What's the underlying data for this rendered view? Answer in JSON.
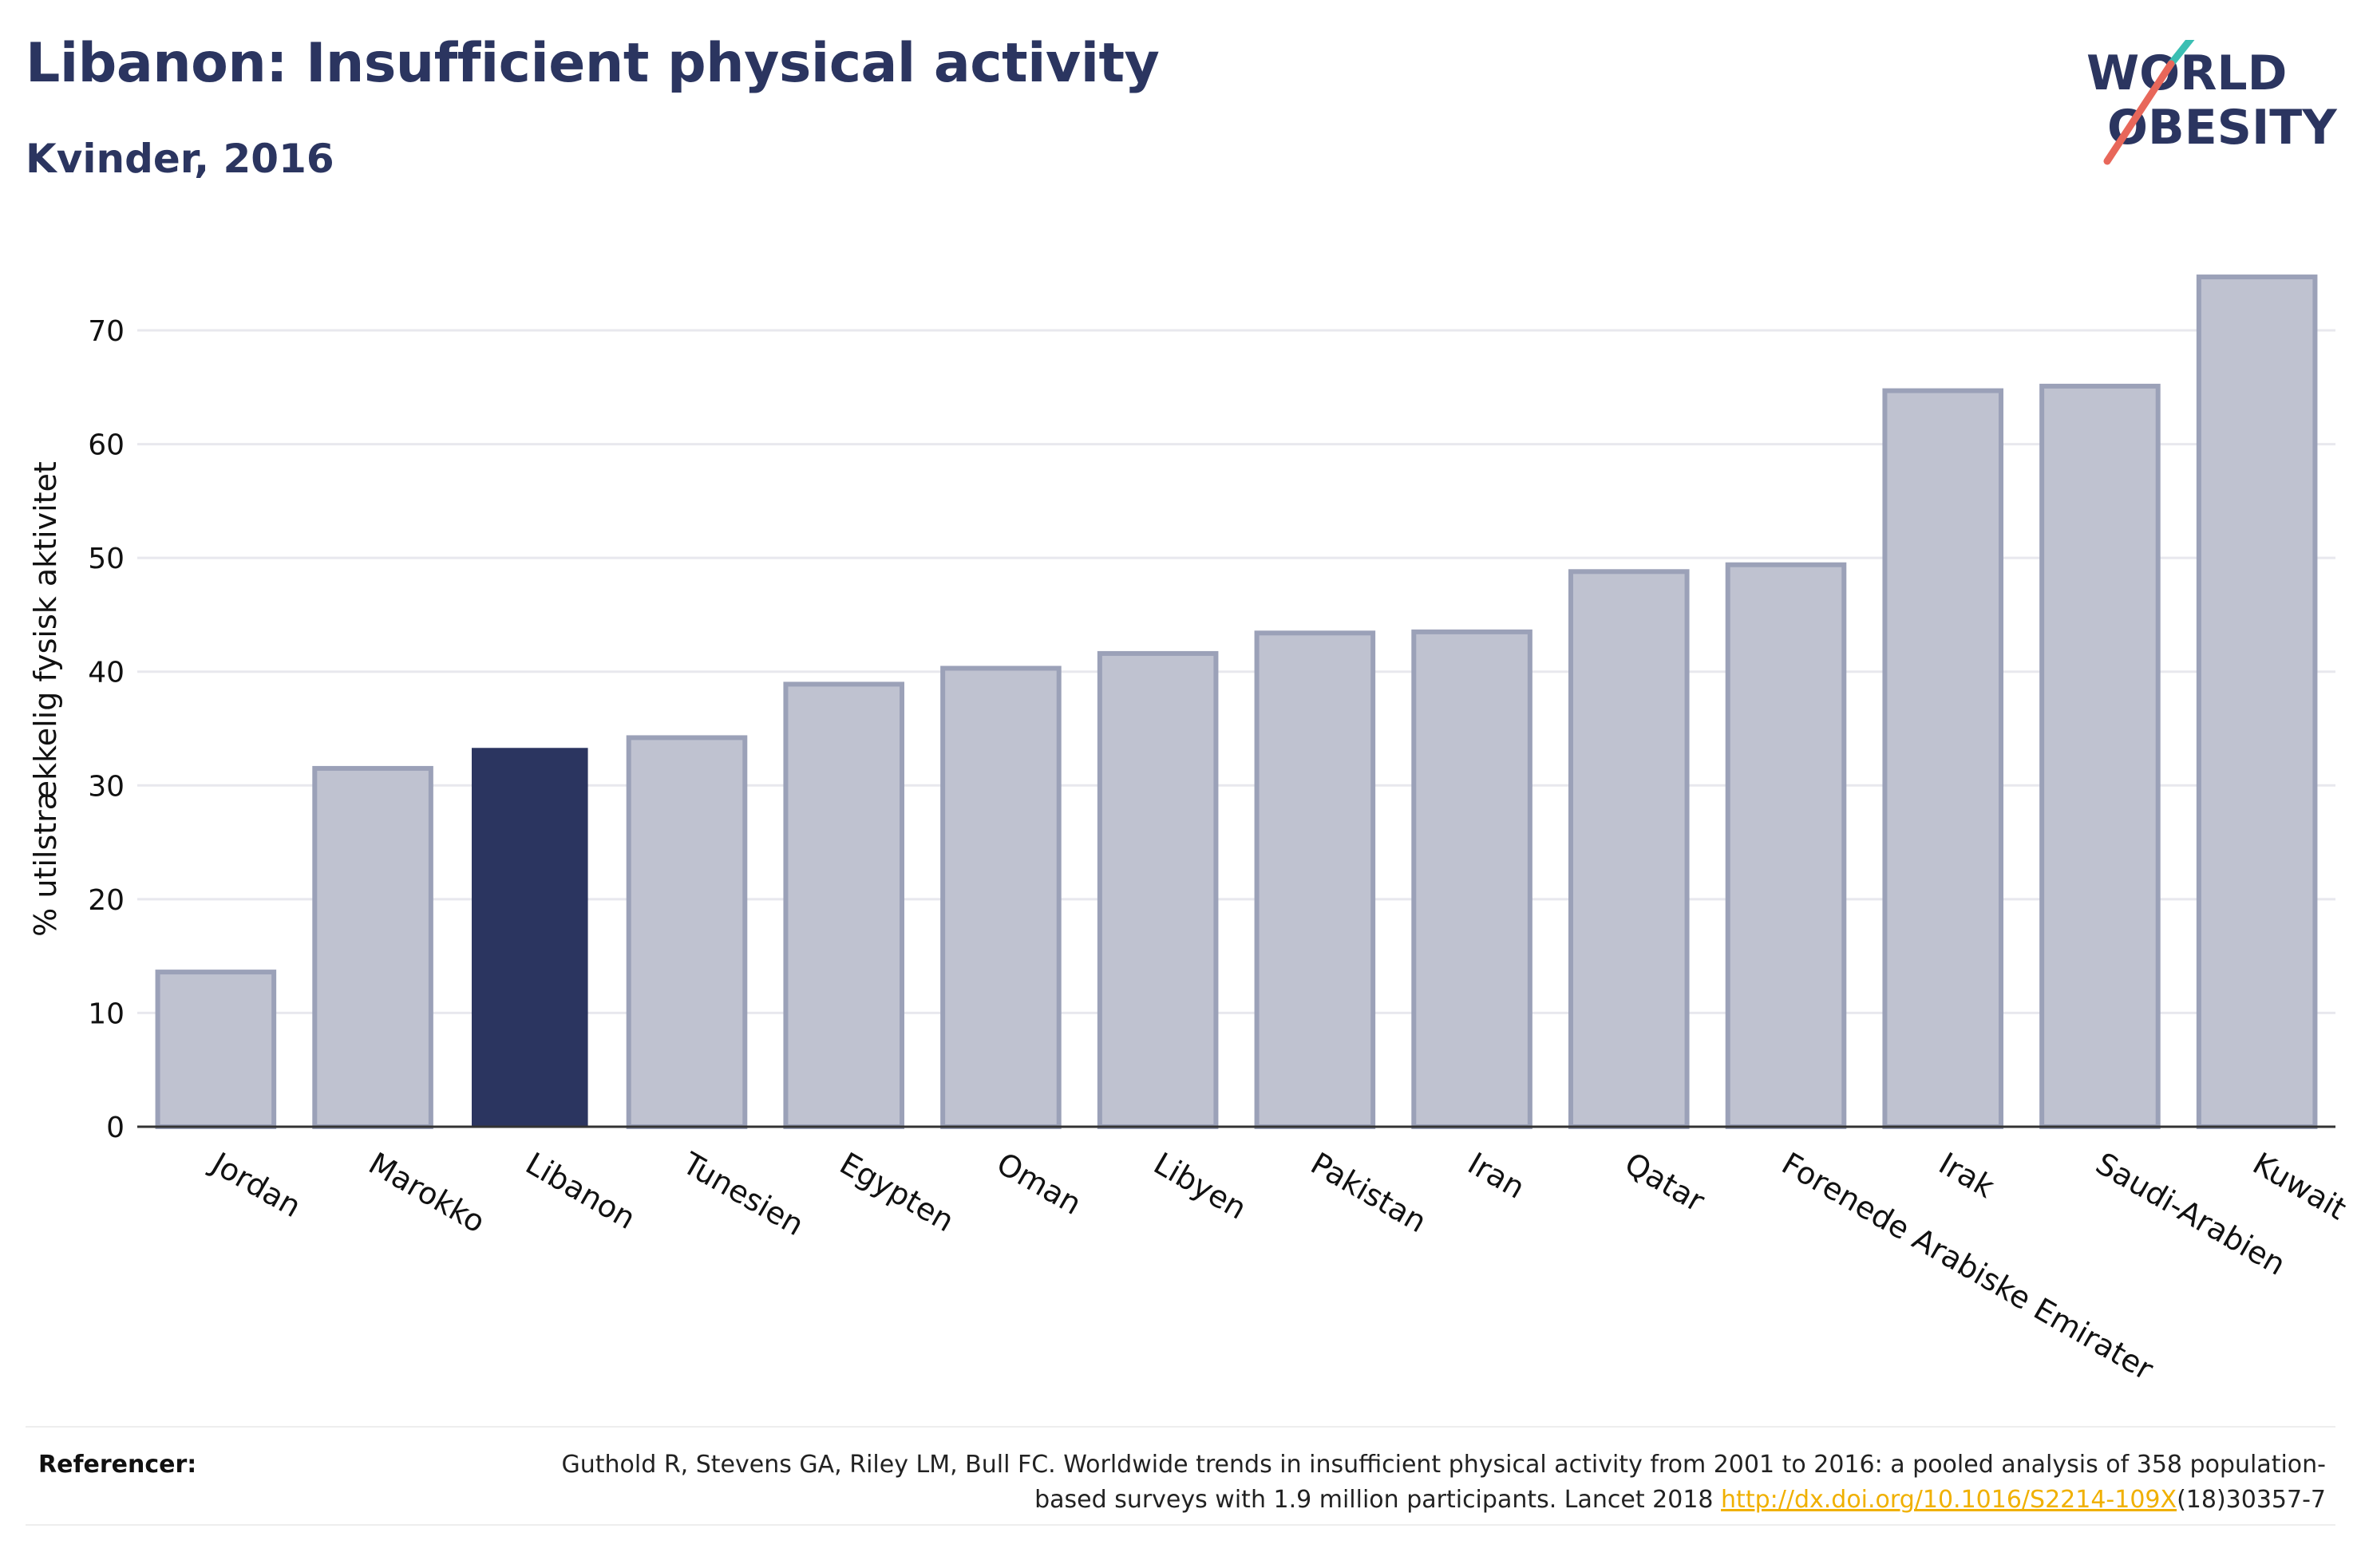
{
  "header": {
    "title": "Libanon: Insufficient physical activity",
    "subtitle": "Kvinder, 2016"
  },
  "logo": {
    "line1": "WORLD",
    "line2": "OBESITY",
    "colors": {
      "text": "#2b3560",
      "slash_top": "#3bbfb3",
      "slash_bottom": "#e8675a"
    }
  },
  "chart_data": {
    "type": "bar",
    "categories": [
      "Jordan",
      "Marokko",
      "Libanon",
      "Tunesien",
      "Egypten",
      "Oman",
      "Libyen",
      "Pakistan",
      "Iran",
      "Qatar",
      "Forenede Arabiske Emirater",
      "Irak",
      "Saudi-Arabien",
      "Kuwait"
    ],
    "values": [
      13.6,
      31.5,
      33.3,
      34.2,
      38.9,
      40.3,
      41.6,
      43.4,
      43.5,
      48.8,
      49.4,
      64.7,
      65.1,
      74.7
    ],
    "highlight": "Libanon",
    "ylabel": "% utilstrækkelig fysisk aktivitet",
    "ylim": [
      0,
      78
    ],
    "yticks": [
      0,
      10,
      20,
      30,
      40,
      50,
      60,
      70
    ],
    "grid": true,
    "colors": {
      "bar": "#bfc2d0",
      "bar_edge": "#9ba1b8",
      "highlight": "#2b3560",
      "grid": "#e8e8ee",
      "axis": "#333333"
    }
  },
  "references": {
    "label": "Referencer:",
    "text_before": "Guthold R, Stevens GA, Riley LM, Bull FC. Worldwide trends in insufficient physical activity from 2001 to 2016: a pooled analysis of 358 population-based surveys with 1.9 million participants. Lancet 2018 ",
    "link": "http://dx.doi.org/10.1016/S2214-109X",
    "text_after": "(18)30357-7"
  }
}
